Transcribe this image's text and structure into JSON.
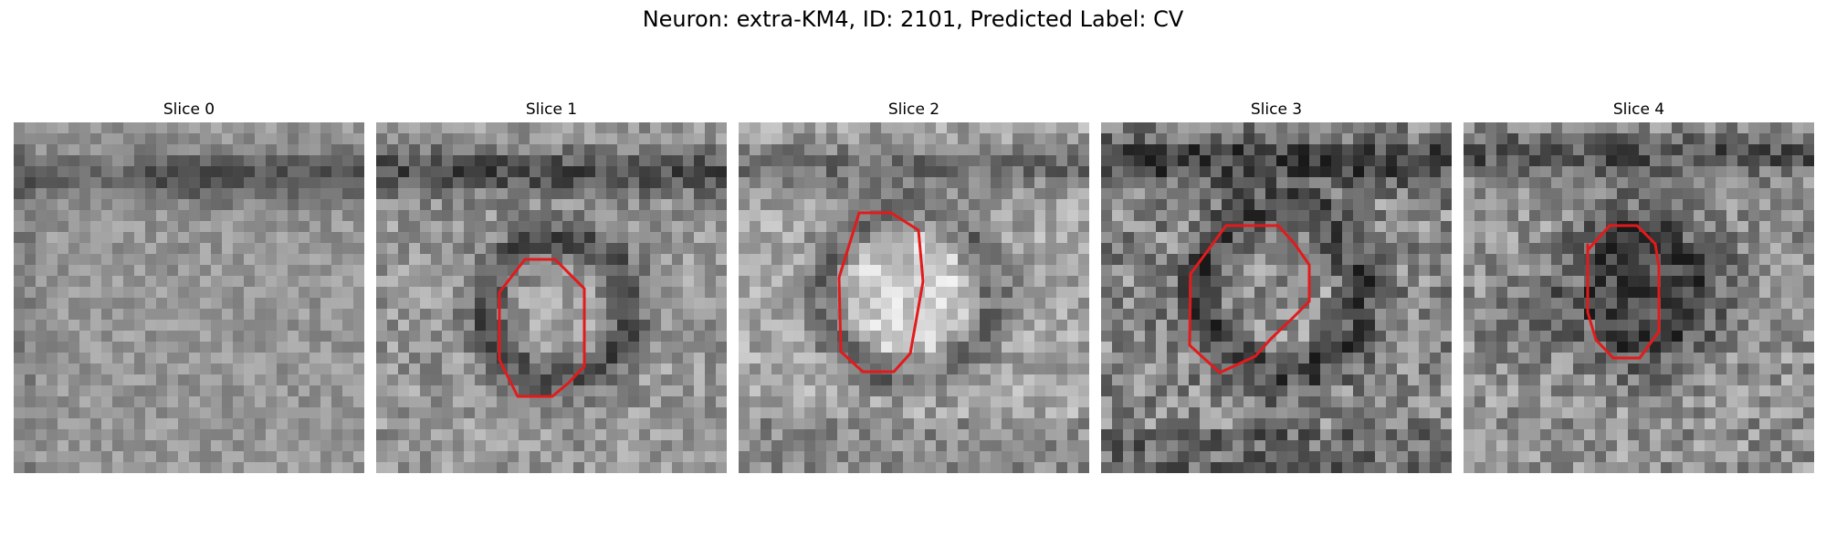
{
  "figure": {
    "title": "Neuron: extra-KM4, ID: 2101, Predicted Label: CV"
  },
  "slices": [
    {
      "title": "Slice 0",
      "has_contour": false
    },
    {
      "title": "Slice 1",
      "has_contour": true
    },
    {
      "title": "Slice 2",
      "has_contour": true
    },
    {
      "title": "Slice 3",
      "has_contour": true
    },
    {
      "title": "Slice 4",
      "has_contour": true
    }
  ],
  "colors": {
    "contour": "#e31a1c",
    "colormap": "grayscale"
  }
}
